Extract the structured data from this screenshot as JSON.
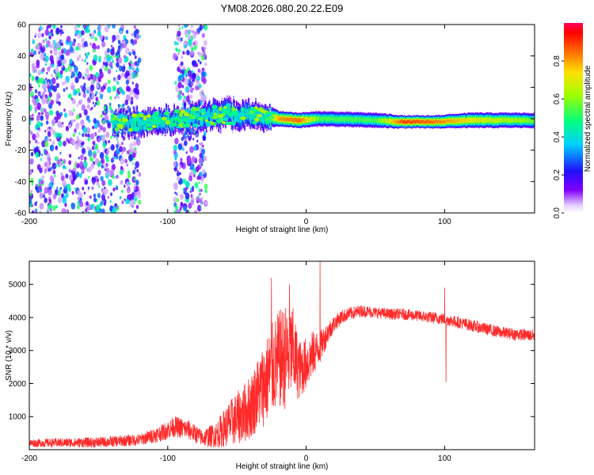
{
  "figure": {
    "title": "YM08.2026.080.20.22.E09"
  },
  "chart_data": [
    {
      "type": "heatmap",
      "name": "spectrogram",
      "xlabel": "Height of straight line (km)",
      "ylabel": "Frequency (Hz)",
      "xlim": [
        -200,
        165
      ],
      "ylim": [
        -60,
        60
      ],
      "xticks": [
        -200,
        -100,
        0,
        100
      ],
      "yticks": [
        -60,
        -40,
        -20,
        0,
        20,
        40,
        60
      ],
      "grid": false,
      "colorbar": {
        "label": "Normalized spectral amplitude",
        "range": [
          0.0,
          1.0
        ],
        "ticks": [
          0.0,
          0.2,
          0.4,
          0.6,
          0.8
        ],
        "tick_labels": [
          "0.0",
          "0.2",
          "0.4",
          "0.6",
          "0.8"
        ]
      },
      "features": {
        "noise_regions_km": [
          [
            -200,
            -120
          ],
          [
            -95,
            -72
          ]
        ],
        "noise_freq_range_hz": [
          -60,
          60
        ],
        "noise_amplitude_range": [
          0.05,
          0.55
        ],
        "echo_band": [
          {
            "x": -140,
            "center_hz": -3,
            "halfwidth_hz": 5,
            "peak": 0.45
          },
          {
            "x": -100,
            "center_hz": -1,
            "halfwidth_hz": 5,
            "peak": 0.5
          },
          {
            "x": -60,
            "center_hz": 3,
            "halfwidth_hz": 6,
            "peak": 0.45
          },
          {
            "x": -30,
            "center_hz": 2,
            "halfwidth_hz": 5,
            "peak": 0.5
          },
          {
            "x": -20,
            "center_hz": 0,
            "halfwidth_hz": 3,
            "peak": 0.9
          },
          {
            "x": -5,
            "center_hz": -1,
            "halfwidth_hz": 3,
            "peak": 0.95
          },
          {
            "x": 10,
            "center_hz": 0,
            "halfwidth_hz": 3,
            "peak": 0.6
          },
          {
            "x": 50,
            "center_hz": -1,
            "halfwidth_hz": 3,
            "peak": 0.6
          },
          {
            "x": 70,
            "center_hz": -2,
            "halfwidth_hz": 2.5,
            "peak": 1.0
          },
          {
            "x": 90,
            "center_hz": -2,
            "halfwidth_hz": 2.5,
            "peak": 0.95
          },
          {
            "x": 120,
            "center_hz": -1,
            "halfwidth_hz": 3,
            "peak": 0.8
          },
          {
            "x": 165,
            "center_hz": -1,
            "halfwidth_hz": 3,
            "peak": 0.65
          }
        ]
      }
    },
    {
      "type": "line",
      "name": "snr",
      "xlabel": "Height of straight line (km)",
      "ylabel": "SNR (10 * v/v)",
      "xlim": [
        -200,
        165
      ],
      "ylim": [
        0,
        5700
      ],
      "xticks": [
        -200,
        -100,
        0,
        100
      ],
      "yticks": [
        1000,
        2000,
        3000,
        4000,
        5000
      ],
      "color": "#ff2020",
      "grid": false,
      "series": [
        {
          "name": "SNR",
          "envelope_x": [
            -200,
            -150,
            -120,
            -105,
            -95,
            -85,
            -75,
            -65,
            -55,
            -45,
            -40,
            -35,
            -30,
            -25,
            -20,
            -15,
            -10,
            -5,
            0,
            5,
            10,
            15,
            20,
            25,
            30,
            40,
            50,
            60,
            70,
            80,
            90,
            100,
            110,
            120,
            130,
            140,
            150,
            165
          ],
          "envelope_y": [
            200,
            220,
            300,
            500,
            700,
            600,
            350,
            450,
            800,
            1100,
            1300,
            1700,
            2000,
            2400,
            2700,
            2800,
            3000,
            2400,
            2600,
            2900,
            3100,
            3500,
            3800,
            4000,
            4100,
            4200,
            4150,
            4100,
            4100,
            4050,
            4000,
            3950,
            3850,
            3750,
            3650,
            3550,
            3500,
            3450
          ],
          "noise_amplitude": [
            120,
            160,
            180,
            250,
            320,
            300,
            250,
            400,
            700,
            900,
            1000,
            1100,
            1300,
            1400,
            1500,
            1600,
            1400,
            900,
            800,
            700,
            500,
            350,
            250,
            220,
            200,
            180,
            170,
            170,
            170,
            170,
            180,
            180,
            180,
            180,
            180,
            180,
            180,
            180
          ],
          "spikes": [
            {
              "x": -25,
              "y": 5200
            },
            {
              "x": -12,
              "y": 5000
            },
            {
              "x": 10,
              "y": 5700
            },
            {
              "x": 10,
              "y": 200
            },
            {
              "x": 100,
              "y": 4900
            },
            {
              "x": 101,
              "y": 2050
            }
          ]
        }
      ]
    }
  ]
}
